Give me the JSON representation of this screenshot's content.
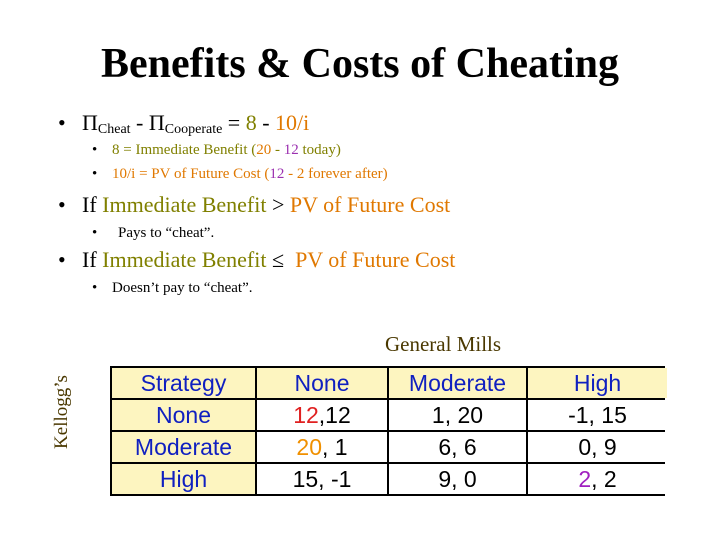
{
  "title": "Benefits & Costs of Cheating",
  "eq": {
    "pi1": "Π",
    "cheat": "Cheat",
    "minus": " - ",
    "pi2": "Π",
    "cooperate": "Cooperate",
    "rest_black": " = ",
    "eight": "8",
    "rest_black2": " - ",
    "ten_i": "10/i"
  },
  "sub1": {
    "a": "8 = Immediate Benefit (",
    "b": "20",
    "c": " - ",
    "d": "12",
    "e": " today)"
  },
  "sub2": {
    "a": "10/i = PV of Future Cost (",
    "b": "12",
    "c": " - 2 forever after)"
  },
  "cond1": {
    "a": "If ",
    "b": "Immediate Benefit",
    "c": " > ",
    "d": "PV of Future Cost"
  },
  "cond1_sub": "Pays to “cheat”.",
  "cond2": {
    "a": "If ",
    "b": "Immediate Benefit",
    "c": " ≤  ",
    "d": "PV of Future Cost"
  },
  "cond2_sub": "Doesn’t pay to “cheat”.",
  "column_player": "General Mills",
  "row_player": "Kellogg’s",
  "table": {
    "headers": [
      "Strategy",
      "None",
      "Moderate",
      "High"
    ],
    "rows": [
      {
        "label": "None",
        "c1a": "12",
        "c1b": ",12",
        "c2": "1, 20",
        "c3": "-1, 15"
      },
      {
        "label": "Moderate",
        "c1a": "20",
        "c1b": ", 1",
        "c2": "6, 6",
        "c3": "0, 9"
      },
      {
        "label": "High",
        "c1": "15, -1",
        "c2": "9, 0",
        "c3a": "2",
        "c3b": ", 2"
      }
    ]
  },
  "colors": {
    "olive": "#808000",
    "orange": "#E07800",
    "purple": "#9B30B0",
    "table_header_bg": "#FDF5C0",
    "table_header_text": "#1020C0",
    "highlight_red": "#E02020"
  }
}
